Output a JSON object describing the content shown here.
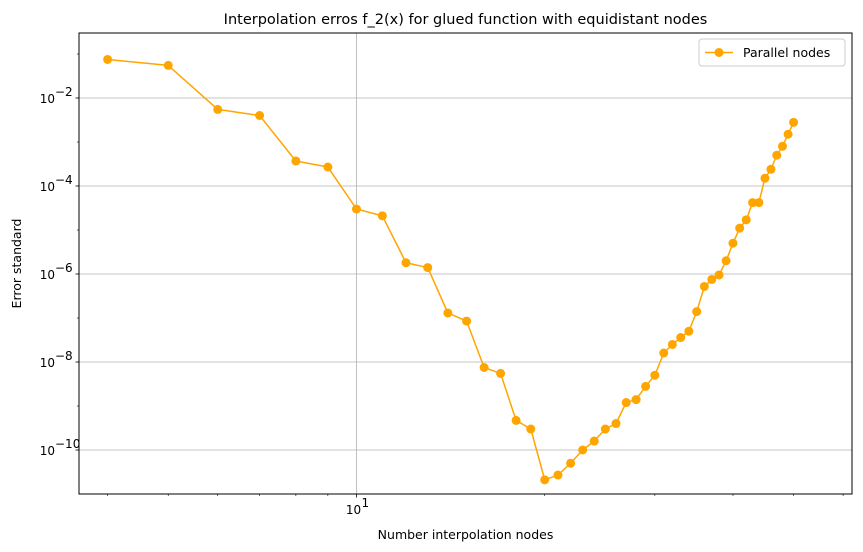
{
  "chart_data": {
    "type": "line",
    "title": "Interpolation erros f_2(x) for glued function with equidistant nodes",
    "xlabel": "Number interpolation nodes",
    "ylabel": "Error standard",
    "xscale": "log",
    "yscale": "log",
    "xlim": [
      3.6,
      62
    ],
    "ylim": [
      1e-11,
      0.3
    ],
    "grid": true,
    "legend_position": "top-right",
    "x_major_ticks": [
      {
        "value": 10,
        "base": "10",
        "exp": "1"
      }
    ],
    "x_minor_ticks": [
      4,
      5,
      6,
      7,
      8,
      9,
      20,
      30,
      40,
      50,
      60
    ],
    "y_major_ticks": [
      {
        "value": 1e-10,
        "base": "10",
        "exp": "−10"
      },
      {
        "value": 1e-08,
        "base": "10",
        "exp": "−8"
      },
      {
        "value": 1e-06,
        "base": "10",
        "exp": "−6"
      },
      {
        "value": 0.0001,
        "base": "10",
        "exp": "−4"
      },
      {
        "value": 0.01,
        "base": "10",
        "exp": "−2"
      }
    ],
    "series": [
      {
        "name": "Parallel nodes",
        "color": "#ffa500",
        "marker": "circle",
        "points": [
          [
            4,
            0.075
          ],
          [
            5,
            0.055
          ],
          [
            6,
            0.0055
          ],
          [
            7,
            0.004
          ],
          [
            8,
            0.00037
          ],
          [
            9,
            0.00027
          ],
          [
            10,
            3e-05
          ],
          [
            11,
            2.1e-05
          ],
          [
            12,
            1.8e-06
          ],
          [
            13,
            1.4e-06
          ],
          [
            14,
            1.3e-07
          ],
          [
            15,
            8.5e-08
          ],
          [
            16,
            7.5e-09
          ],
          [
            17,
            5.5e-09
          ],
          [
            18,
            4.7e-10
          ],
          [
            19,
            3e-10
          ],
          [
            20,
            2.1e-11
          ],
          [
            21,
            2.7e-11
          ],
          [
            22,
            5e-11
          ],
          [
            23,
            1e-10
          ],
          [
            24,
            1.6e-10
          ],
          [
            25,
            3e-10
          ],
          [
            26,
            4e-10
          ],
          [
            27,
            1.2e-09
          ],
          [
            28,
            1.4e-09
          ],
          [
            29,
            2.8e-09
          ],
          [
            30,
            5e-09
          ],
          [
            31,
            1.6e-08
          ],
          [
            32,
            2.5e-08
          ],
          [
            33,
            3.6e-08
          ],
          [
            34,
            5e-08
          ],
          [
            35,
            1.4e-07
          ],
          [
            36,
            5.2e-07
          ],
          [
            37,
            7.5e-07
          ],
          [
            38,
            9.5e-07
          ],
          [
            39,
            2e-06
          ],
          [
            40,
            5e-06
          ],
          [
            41,
            1.1e-05
          ],
          [
            42,
            1.7e-05
          ],
          [
            43,
            4.2e-05
          ],
          [
            44,
            4.2e-05
          ],
          [
            45,
            0.00015
          ],
          [
            46,
            0.00024
          ],
          [
            47,
            0.0005
          ],
          [
            48,
            0.0008
          ],
          [
            49,
            0.0015
          ],
          [
            50,
            0.0028
          ]
        ]
      }
    ]
  }
}
